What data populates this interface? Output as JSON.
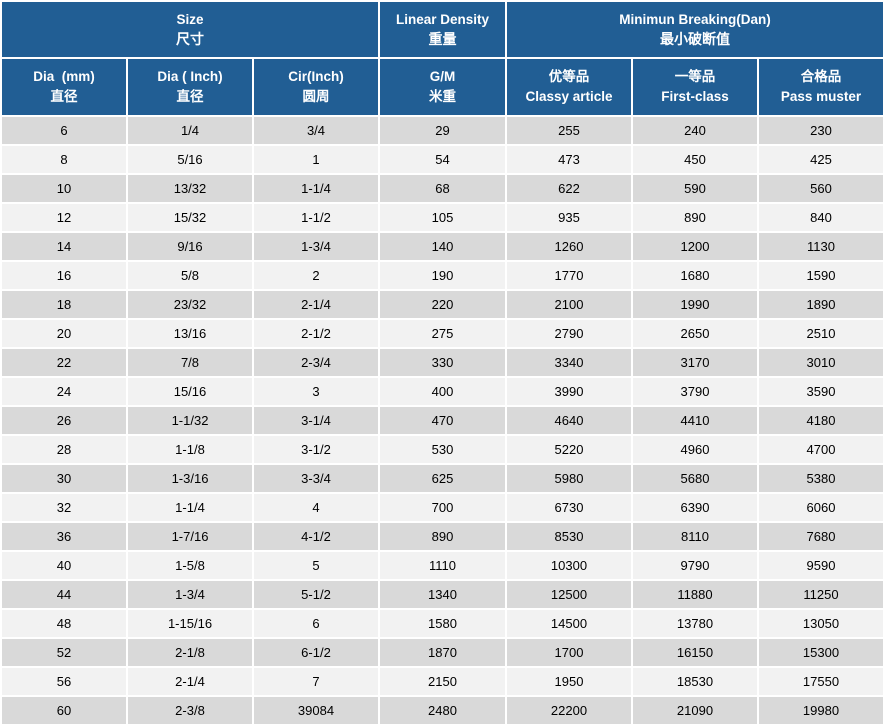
{
  "chart_data": {
    "type": "table",
    "title": "Rope specification table (bilingual English/Chinese)",
    "header_groups": [
      {
        "en": "Size",
        "zh": "尺寸",
        "colspan": 3
      },
      {
        "en": "Linear Density",
        "zh": "重量",
        "colspan": 1
      },
      {
        "en": "Minimun Breaking(Dan)",
        "zh": "最小破断值",
        "colspan": 3
      }
    ],
    "columns": [
      {
        "line1": "Dia  (mm)",
        "line2": "直径"
      },
      {
        "line1": "Dia ( Inch)",
        "line2": "直径"
      },
      {
        "line1": "Cir(Inch)",
        "line2": "圆周"
      },
      {
        "line1": "G/M",
        "line2": "米重"
      },
      {
        "line1": "优等品",
        "line2": "Classy article"
      },
      {
        "line1": "一等品",
        "line2": "First-class"
      },
      {
        "line1": "合格品",
        "line2": "Pass muster"
      }
    ],
    "rows": [
      [
        "6",
        "1/4",
        "3/4",
        "29",
        "255",
        "240",
        "230"
      ],
      [
        "8",
        "5/16",
        "1",
        "54",
        "473",
        "450",
        "425"
      ],
      [
        "10",
        "13/32",
        "1-1/4",
        "68",
        "622",
        "590",
        "560"
      ],
      [
        "12",
        "15/32",
        "1-1/2",
        "105",
        "935",
        "890",
        "840"
      ],
      [
        "14",
        "9/16",
        "1-3/4",
        "140",
        "1260",
        "1200",
        "1130"
      ],
      [
        "16",
        "5/8",
        "2",
        "190",
        "1770",
        "1680",
        "1590"
      ],
      [
        "18",
        "23/32",
        "2-1/4",
        "220",
        "2100",
        "1990",
        "1890"
      ],
      [
        "20",
        "13/16",
        "2-1/2",
        "275",
        "2790",
        "2650",
        "2510"
      ],
      [
        "22",
        "7/8",
        "2-3/4",
        "330",
        "3340",
        "3170",
        "3010"
      ],
      [
        "24",
        "15/16",
        "3",
        "400",
        "3990",
        "3790",
        "3590"
      ],
      [
        "26",
        "1-1/32",
        "3-1/4",
        "470",
        "4640",
        "4410",
        "4180"
      ],
      [
        "28",
        "1-1/8",
        "3-1/2",
        "530",
        "5220",
        "4960",
        "4700"
      ],
      [
        "30",
        "1-3/16",
        "3-3/4",
        "625",
        "5980",
        "5680",
        "5380"
      ],
      [
        "32",
        "1-1/4",
        "4",
        "700",
        "6730",
        "6390",
        "6060"
      ],
      [
        "36",
        "1-7/16",
        "4-1/2",
        "890",
        "8530",
        "8110",
        "7680"
      ],
      [
        "40",
        "1-5/8",
        "5",
        "1110",
        "10300",
        "9790",
        "9590"
      ],
      [
        "44",
        "1-3/4",
        "5-1/2",
        "1340",
        "12500",
        "11880",
        "11250"
      ],
      [
        "48",
        "1-15/16",
        "6",
        "1580",
        "14500",
        "13780",
        "13050"
      ],
      [
        "52",
        "2-1/8",
        "6-1/2",
        "1870",
        "1700",
        "16150",
        "15300"
      ],
      [
        "56",
        "2-1/4",
        "7",
        "2150",
        "1950",
        "18530",
        "17550"
      ],
      [
        "60",
        "2-3/8",
        "39084",
        "2480",
        "22200",
        "21090",
        "19980"
      ]
    ]
  },
  "colors": {
    "header_bg": "#215E94",
    "header_text": "#FFFFFF",
    "row_odd_bg": "#D9D9D9",
    "row_even_bg": "#F2F2F2",
    "body_text": "#000000",
    "grid_border": "#FFFFFF"
  }
}
